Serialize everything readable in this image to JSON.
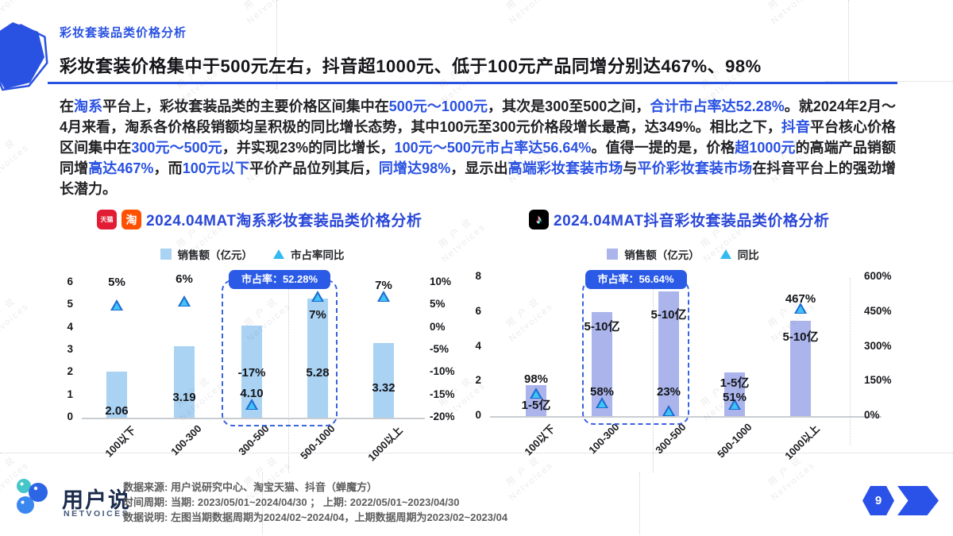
{
  "page": {
    "eyebrow": "彩妆套装品类价格分析",
    "title": "彩妆套装价格集中于500元左右，抖音超1000元、低于100元产品同增分别达467%、98%",
    "page_number": "9",
    "watermark_cn": "用 户 说",
    "watermark_en": "Netvoices",
    "accent_color": "#2A52E2"
  },
  "paragraph": {
    "runs": [
      {
        "t": "在",
        "h": false
      },
      {
        "t": "淘系",
        "h": true
      },
      {
        "t": "平台上，彩妆套装品类的主要价格区间集中在",
        "h": false
      },
      {
        "t": "500元～1000元",
        "h": true
      },
      {
        "t": "，其次是300至500之间，",
        "h": false
      },
      {
        "t": "合计市占率达52.28%",
        "h": true
      },
      {
        "t": "。就2024年2月～4月来看，淘系各价格段销额均呈积极的同比增长态势，其中100元至300元价格段增长最高，达349%。相比之下，",
        "h": false
      },
      {
        "t": "抖音",
        "h": true
      },
      {
        "t": "平台核心价格区间集中在",
        "h": false
      },
      {
        "t": "300元～500元",
        "h": true
      },
      {
        "t": "，并实现23%的同比增长，",
        "h": false
      },
      {
        "t": "100元～500元市占率达56.64%",
        "h": true
      },
      {
        "t": "。值得一提的是，价格",
        "h": false
      },
      {
        "t": "超1000元",
        "h": true
      },
      {
        "t": "的高端产品销额同增",
        "h": false
      },
      {
        "t": "高达467%",
        "h": true
      },
      {
        "t": "，而",
        "h": false
      },
      {
        "t": "100元以下",
        "h": true
      },
      {
        "t": "平价产品位列其后，",
        "h": false
      },
      {
        "t": "同增达98%",
        "h": true
      },
      {
        "t": "，显示出",
        "h": false
      },
      {
        "t": "高端彩妆套装市场",
        "h": true
      },
      {
        "t": "与",
        "h": false
      },
      {
        "t": "平价彩妆套装市场",
        "h": true
      },
      {
        "t": "在抖音平台上的强劲增长潜力。",
        "h": false
      }
    ]
  },
  "icons": {
    "tmall": "天猫",
    "taobao": "淘",
    "tiktok": "♪"
  },
  "chart_data": [
    {
      "type": "bar",
      "platform": "淘系",
      "title": "2024.04MAT淘系彩妆套装品类价格分析",
      "categories": [
        "100以下",
        "100-300",
        "300-500",
        "500-1000",
        "1000以上"
      ],
      "series": [
        {
          "name": "销售额（亿元）",
          "type": "bar",
          "values": [
            2.06,
            3.19,
            4.1,
            5.28,
            3.32
          ],
          "labels": [
            "2.06",
            "3.19",
            "4.10",
            "5.28",
            "3.32"
          ]
        },
        {
          "name": "市占率同比",
          "type": "triangle-marker",
          "values": [
            5,
            6,
            -17,
            7,
            7
          ],
          "labels": [
            "5%",
            "6%",
            "-17%",
            "7%",
            "7%"
          ]
        }
      ],
      "left_axis": {
        "min": 0,
        "max": 6,
        "step": 1,
        "suffix": ""
      },
      "right_axis": {
        "min": -20,
        "max": 10,
        "step": 5,
        "suffix": "%"
      },
      "highlight": {
        "from_index": 2,
        "to_index": 3,
        "label": "市占率：52.28%"
      },
      "colors": {
        "bar": "#A9D2F3",
        "triangle": "#41C3F5",
        "triangle_edge": "#1C6BD2"
      },
      "legend_position": "top-center",
      "grid": false
    },
    {
      "type": "bar",
      "platform": "抖音",
      "title": "2024.04MAT抖音彩妆套装品类价格分析",
      "categories": [
        "100以下",
        "100-300",
        "300-500",
        "500-1000",
        "1000以上"
      ],
      "series": [
        {
          "name": "销售额（亿元）",
          "type": "bar",
          "values": [
            1.8,
            6.0,
            7.2,
            2.5,
            5.5
          ],
          "labels": [
            "1-5亿",
            "5-10亿",
            "5-10亿",
            "1-5亿",
            "5-10亿"
          ]
        },
        {
          "name": "同比",
          "type": "triangle-marker",
          "values": [
            98,
            58,
            23,
            51,
            467
          ],
          "labels": [
            "98%",
            "58%",
            "23%",
            "51%",
            "467%"
          ]
        }
      ],
      "left_axis": {
        "min": 0,
        "max": 8,
        "step": 2,
        "suffix": ""
      },
      "right_axis": {
        "min": 0,
        "max": 600,
        "step": 150,
        "suffix": "%"
      },
      "highlight": {
        "from_index": 1,
        "to_index": 2,
        "label": "市占率：56.64%"
      },
      "colors": {
        "bar": "#ABB5EC",
        "triangle": "#41C3F5",
        "triangle_edge": "#1C6BD2"
      },
      "legend_position": "top-center",
      "grid": false
    }
  ],
  "footer": {
    "brand": "用户说",
    "brand_sub": "NETVOICES",
    "lines": [
      "数据来源: 用户说研究中心、淘宝天猫、抖音（蝉魔方）",
      "时间周期: 当期: 2023/05/01~2024/04/30 ； 上期: 2022/05/01~2023/04/30",
      "数据说明: 左图当期数据周期为2024/02~2024/04，上期数据周期为2023/02~2023/04"
    ]
  }
}
